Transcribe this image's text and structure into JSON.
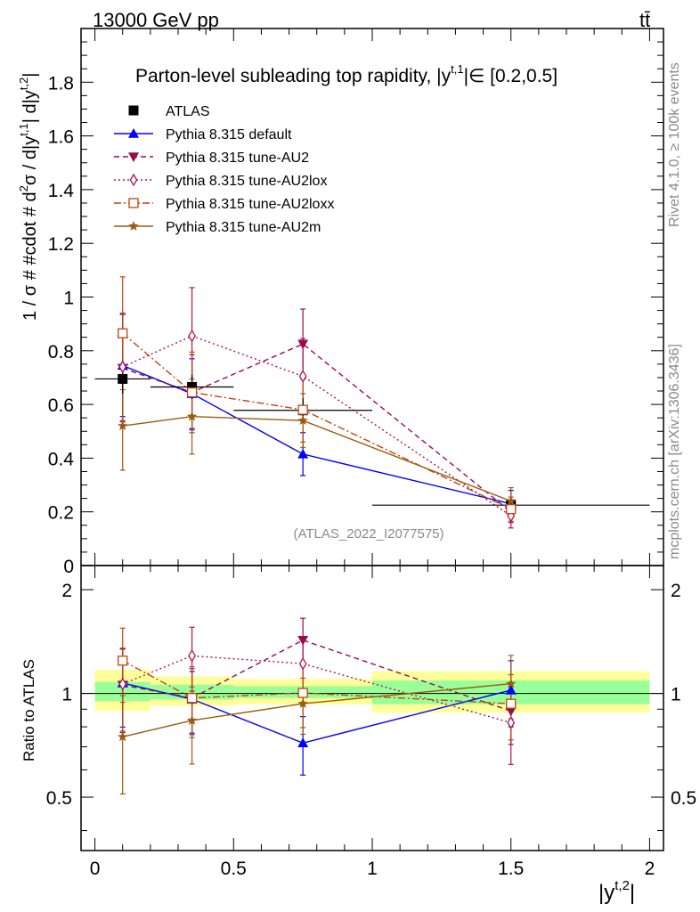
{
  "header": {
    "left": "13000 GeV pp",
    "right": "tt̄"
  },
  "side_labels": {
    "rivet": "Rivet 4.1.0, ≥ 100k events",
    "mcplots": "mcplots.cern.ch [arXiv:1306.3436]"
  },
  "chart_data": {
    "type": "line",
    "title": "Parton-level subleading top rapidity, |y^{t,1}|∈ [0.2,0.5]",
    "title_parts": {
      "pre": "Parton-level subleading top rapidity, |y",
      "sup": "t,1",
      "post": "|∈ [0.2,0.5]"
    },
    "ylabel": "1 / σ # #cdot # d²σ / d|y^{t,1}| d|y^{t,2}|",
    "ylabel_parts": {
      "p1": "1 / σ # #cdot # d",
      "s1": "2",
      "p2": "σ / d|y",
      "s2": "t,1",
      "p3": "| d|y",
      "s3": "t,2",
      "p4": "|"
    },
    "xlabel": "|y^{t,2}|",
    "xlabel_parts": {
      "base": "|y",
      "sup": "t,2",
      "end": "|"
    },
    "ratio_ylabel": "Ratio to ATLAS",
    "watermark": "(ATLAS_2022_I2077575)",
    "xlim": [
      -0.05,
      2.05
    ],
    "ylim": [
      0,
      2.0
    ],
    "ratio_ylim": [
      0.35,
      2.35
    ],
    "x_ticks": [
      "0",
      "0.5",
      "1",
      "1.5",
      "2"
    ],
    "y_ticks": [
      "0",
      "0.2",
      "0.4",
      "0.6",
      "0.8",
      "1",
      "1.2",
      "1.4",
      "1.6",
      "1.8"
    ],
    "ratio_y_ticks": [
      "0.5",
      "1",
      "2"
    ],
    "data": {
      "name": "ATLAS",
      "x": [
        0.1,
        0.35,
        0.75,
        1.5
      ],
      "xerr": [
        0.1,
        0.15,
        0.25,
        0.5
      ],
      "y": [
        0.695,
        0.665,
        0.578,
        0.225
      ],
      "yerr": [
        0.055,
        0.045,
        0.045,
        0.03
      ]
    },
    "bands": [
      {
        "x0": 0.0,
        "x1": 0.2,
        "g_lo": 0.95,
        "g_hi": 1.08,
        "y_lo": 0.89,
        "y_hi": 1.17
      },
      {
        "x0": 0.2,
        "x1": 0.5,
        "g_lo": 0.96,
        "g_hi": 1.06,
        "y_lo": 0.92,
        "y_hi": 1.12
      },
      {
        "x0": 0.5,
        "x1": 1.0,
        "g_lo": 0.97,
        "g_hi": 1.05,
        "y_lo": 0.93,
        "y_hi": 1.1
      },
      {
        "x0": 1.0,
        "x1": 2.0,
        "g_lo": 0.93,
        "g_hi": 1.09,
        "y_lo": 0.88,
        "y_hi": 1.16
      }
    ],
    "series": [
      {
        "name": "Pythia 8.315 default",
        "color": "#0000ff",
        "dash": "",
        "marker": "triangle-up",
        "x": [
          0.1,
          0.35,
          0.75,
          1.5
        ],
        "y": [
          0.745,
          0.64,
          0.415,
          0.23
        ],
        "yerr": [
          0.19,
          0.13,
          0.08,
          0.05
        ]
      },
      {
        "name": "Pythia 8.315 tune-AU2",
        "color": "#9c0b4f",
        "dash": "6,4",
        "marker": "triangle-down",
        "x": [
          0.1,
          0.35,
          0.75,
          1.5
        ],
        "y": [
          0.735,
          0.645,
          0.825,
          0.2
        ],
        "yerr": [
          0.2,
          0.14,
          0.13,
          0.04
        ]
      },
      {
        "name": "Pythia 8.315 tune-AU2lox",
        "color": "#b0124f",
        "dash": "2,3",
        "marker": "diamond-open",
        "x": [
          0.1,
          0.35,
          0.75,
          1.5
        ],
        "y": [
          0.74,
          0.855,
          0.705,
          0.185
        ],
        "yerr": [
          0.2,
          0.18,
          0.14,
          0.045
        ]
      },
      {
        "name": "Pythia 8.315 tune-AU2loxx",
        "color": "#c1440e",
        "dash": "8,3,2,3",
        "marker": "square-open",
        "x": [
          0.1,
          0.35,
          0.75,
          1.5
        ],
        "y": [
          0.865,
          0.645,
          0.58,
          0.21
        ],
        "yerr": [
          0.21,
          0.15,
          0.12,
          0.045
        ]
      },
      {
        "name": "Pythia 8.315 tune-AU2m",
        "color": "#9c5a10",
        "dash": "",
        "marker": "star",
        "x": [
          0.1,
          0.35,
          0.75,
          1.5
        ],
        "y": [
          0.52,
          0.555,
          0.54,
          0.24
        ],
        "yerr": [
          0.165,
          0.14,
          0.1,
          0.05
        ]
      }
    ]
  }
}
